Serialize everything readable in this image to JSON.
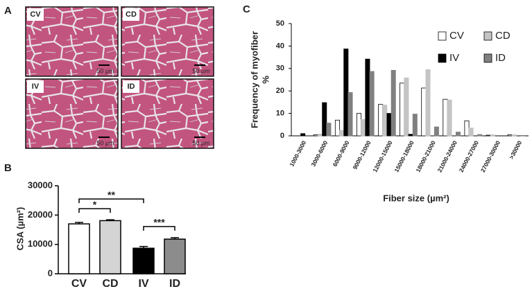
{
  "panel_a": {
    "label": "A",
    "images": [
      {
        "label": "CV",
        "scale": "50 µm"
      },
      {
        "label": "CD",
        "scale": "50 µm"
      },
      {
        "label": "IV",
        "scale": "50 µm"
      },
      {
        "label": "ID",
        "scale": "50 µm"
      }
    ]
  },
  "chart_data": [
    {
      "type": "bar",
      "panel_label": "B",
      "y_label": "CSA (µm²)",
      "categories": [
        "CV",
        "CD",
        "IV",
        "ID"
      ],
      "values": [
        17000,
        18100,
        8700,
        11800
      ],
      "errors": [
        500,
        300,
        600,
        500
      ],
      "colors": [
        "#ffffff",
        "#d4d4d4",
        "#000000",
        "#8c8c8c"
      ],
      "ylim": [
        0,
        30000
      ],
      "yticks": [
        0,
        10000,
        20000,
        30000
      ],
      "annotations": [
        {
          "text": "**",
          "pair": [
            "CV",
            "IV"
          ]
        },
        {
          "text": "*",
          "pair": [
            "CV",
            "CD"
          ]
        },
        {
          "text": "***",
          "pair": [
            "IV",
            "ID"
          ]
        }
      ]
    },
    {
      "type": "grouped-bar",
      "panel_label": "C",
      "y_label": [
        "Frequency of myofiber",
        "%"
      ],
      "x_label": "Fiber size (µm²)",
      "categories": [
        "1000-3000",
        "3000-6000",
        "6000-9000",
        "9000-12000",
        "12000-15000",
        "15000-18000",
        "18000-21000",
        "21000-24000",
        "24000-27000",
        "27000-30000",
        ">30000"
      ],
      "series": [
        {
          "name": "CV",
          "color": "#ffffff",
          "values": [
            0,
            0.5,
            7,
            10,
            14,
            23.5,
            21.3,
            16.3,
            6.7,
            0.3,
            0.5
          ]
        },
        {
          "name": "CD",
          "color": "#c4c4c4",
          "values": [
            0,
            0.8,
            2.5,
            7.3,
            13.7,
            25.8,
            29.5,
            16,
            3.5,
            0.5,
            0.5
          ]
        },
        {
          "name": "IV",
          "color": "#000000",
          "values": [
            1,
            14.8,
            38.7,
            34.2,
            10,
            0.7,
            0,
            0,
            0,
            0,
            0
          ]
        },
        {
          "name": "ID",
          "color": "#808080",
          "values": [
            0,
            5.7,
            19.3,
            28.7,
            29.2,
            9.7,
            4,
            1.7,
            0.6,
            0,
            0.2
          ]
        }
      ],
      "ylim": [
        0,
        50
      ],
      "yticks": [
        0,
        10,
        20,
        30,
        40,
        50
      ],
      "legend": "upper right"
    }
  ]
}
